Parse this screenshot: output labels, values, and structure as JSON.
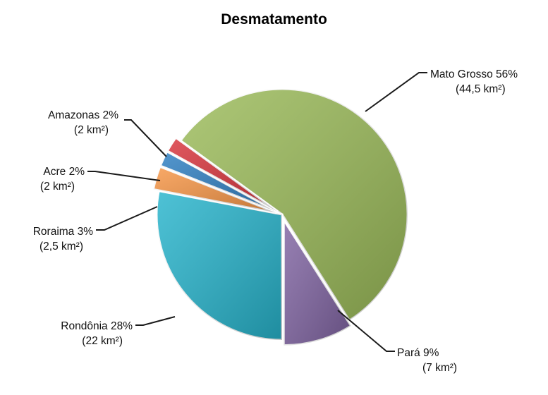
{
  "chart_data": {
    "type": "pie",
    "title": "Desmatamento",
    "slices": [
      {
        "name": "Mato Grosso",
        "percent": 56,
        "pct_label": "56%",
        "value_label": "(44,5 km²)",
        "color": "#9bbb59"
      },
      {
        "name": "Pará",
        "percent": 9,
        "pct_label": "9%",
        "value_label": "(7 km²)",
        "color": "#8064a2"
      },
      {
        "name": "Rondônia",
        "percent": 28,
        "pct_label": "28%",
        "value_label": "(22 km²)",
        "color": "#27b4cc"
      },
      {
        "name": "Roraima",
        "percent": 3,
        "pct_label": "3%",
        "value_label": "(2,5 km²)",
        "color": "#f79646"
      },
      {
        "name": "Acre",
        "percent": 2,
        "pct_label": "2%",
        "value_label": "(2 km²)",
        "color": "#2e7fc2"
      },
      {
        "name": "Amazonas",
        "percent": 2,
        "pct_label": "2%",
        "value_label": "(2 km²)",
        "color": "#d9343c"
      }
    ]
  }
}
